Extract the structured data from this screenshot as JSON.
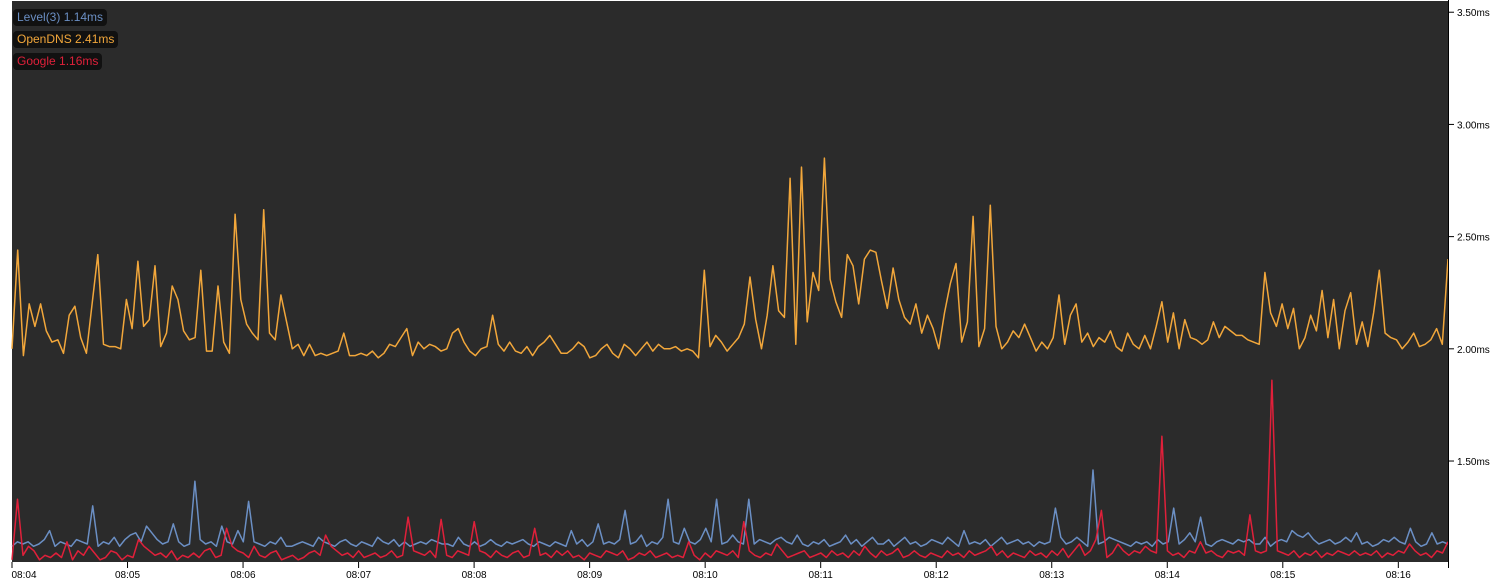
{
  "chart_data": {
    "type": "line",
    "x_ticks": [
      "08:04",
      "08:05",
      "08:06",
      "08:07",
      "08:08",
      "08:09",
      "08:10",
      "08:11",
      "08:12",
      "08:13",
      "08:14",
      "08:15",
      "08:16"
    ],
    "x_range_minutes": [
      0,
      12.43
    ],
    "y_ticks": [
      "1.50ms",
      "2.00ms",
      "2.50ms",
      "3.00ms",
      "3.50ms"
    ],
    "y_tick_values": [
      1.5,
      2.0,
      2.5,
      3.0,
      3.5
    ],
    "ylim": [
      1.05,
      3.55
    ],
    "background": "#2b2b2b",
    "grid": false,
    "legend_position": "top-left",
    "legend": [
      {
        "label": "Level(3) 1.14ms",
        "color": "#6b8fc4"
      },
      {
        "label": "OpenDNS 2.41ms",
        "color": "#f2a73b"
      },
      {
        "label": "Google 1.16ms",
        "color": "#e0203a"
      }
    ],
    "series": [
      {
        "name": "Level(3)",
        "color": "#6b8fc4",
        "values": [
          1.12,
          1.14,
          1.13,
          1.14,
          1.12,
          1.13,
          1.15,
          1.19,
          1.12,
          1.14,
          1.13,
          1.12,
          1.15,
          1.14,
          1.13,
          1.3,
          1.12,
          1.14,
          1.13,
          1.16,
          1.12,
          1.15,
          1.17,
          1.18,
          1.14,
          1.21,
          1.18,
          1.15,
          1.13,
          1.14,
          1.22,
          1.14,
          1.12,
          1.13,
          1.41,
          1.15,
          1.13,
          1.14,
          1.12,
          1.21,
          1.14,
          1.13,
          1.19,
          1.14,
          1.32,
          1.14,
          1.13,
          1.12,
          1.14,
          1.13,
          1.16,
          1.12,
          1.12,
          1.13,
          1.14,
          1.13,
          1.12,
          1.16,
          1.14,
          1.13,
          1.12,
          1.14,
          1.15,
          1.13,
          1.12,
          1.14,
          1.13,
          1.12,
          1.16,
          1.14,
          1.13,
          1.15,
          1.12,
          1.14,
          1.12,
          1.13,
          1.14,
          1.13,
          1.15,
          1.14,
          1.13,
          1.13,
          1.12,
          1.16,
          1.13,
          1.12,
          1.14,
          1.12,
          1.13,
          1.15,
          1.13,
          1.12,
          1.14,
          1.13,
          1.14,
          1.15,
          1.13,
          1.12,
          1.14,
          1.13,
          1.12,
          1.14,
          1.13,
          1.12,
          1.19,
          1.13,
          1.15,
          1.12,
          1.14,
          1.22,
          1.13,
          1.14,
          1.13,
          1.15,
          1.28,
          1.13,
          1.14,
          1.17,
          1.12,
          1.14,
          1.13,
          1.16,
          1.33,
          1.14,
          1.13,
          1.2,
          1.14,
          1.13,
          1.15,
          1.2,
          1.14,
          1.33,
          1.13,
          1.14,
          1.17,
          1.14,
          1.13,
          1.33,
          1.13,
          1.15,
          1.14,
          1.13,
          1.15,
          1.16,
          1.14,
          1.13,
          1.17,
          1.13,
          1.12,
          1.14,
          1.13,
          1.15,
          1.12,
          1.13,
          1.14,
          1.17,
          1.13,
          1.15,
          1.12,
          1.14,
          1.16,
          1.13,
          1.13,
          1.15,
          1.12,
          1.14,
          1.16,
          1.13,
          1.14,
          1.12,
          1.13,
          1.15,
          1.14,
          1.13,
          1.16,
          1.14,
          1.12,
          1.19,
          1.13,
          1.14,
          1.13,
          1.15,
          1.12,
          1.14,
          1.16,
          1.13,
          1.14,
          1.15,
          1.13,
          1.14,
          1.12,
          1.14,
          1.13,
          1.14,
          1.29,
          1.16,
          1.13,
          1.14,
          1.16,
          1.14,
          1.12,
          1.46,
          1.13,
          1.14,
          1.16,
          1.15,
          1.14,
          1.13,
          1.12,
          1.14,
          1.13,
          1.14,
          1.12,
          1.15,
          1.13,
          1.14,
          1.29,
          1.13,
          1.15,
          1.18,
          1.14,
          1.25,
          1.13,
          1.12,
          1.14,
          1.15,
          1.14,
          1.13,
          1.15,
          1.14,
          1.15,
          1.13,
          1.13,
          1.16,
          1.12,
          1.14,
          1.15,
          1.14,
          1.19,
          1.17,
          1.16,
          1.18,
          1.15,
          1.13,
          1.14,
          1.15,
          1.13,
          1.14,
          1.16,
          1.14,
          1.18,
          1.13,
          1.14,
          1.12,
          1.13,
          1.15,
          1.14,
          1.16,
          1.14,
          1.13,
          1.2,
          1.14,
          1.12,
          1.13,
          1.18,
          1.13,
          1.14,
          1.13
        ]
      },
      {
        "name": "OpenDNS",
        "color": "#f2a73b",
        "values": [
          2.0,
          2.44,
          1.97,
          2.2,
          2.1,
          2.2,
          2.08,
          2.03,
          2.04,
          1.98,
          2.15,
          2.19,
          2.05,
          1.98,
          2.2,
          2.42,
          2.02,
          2.01,
          2.01,
          2.0,
          2.22,
          2.09,
          2.39,
          2.1,
          2.13,
          2.37,
          2.01,
          2.07,
          2.28,
          2.22,
          2.08,
          2.04,
          2.05,
          2.35,
          1.99,
          1.99,
          2.28,
          2.03,
          1.98,
          2.6,
          2.22,
          2.11,
          2.07,
          2.04,
          2.62,
          2.07,
          2.04,
          2.24,
          2.12,
          2.0,
          2.02,
          1.97,
          2.02,
          1.97,
          1.98,
          1.97,
          1.98,
          1.99,
          2.07,
          1.97,
          1.97,
          1.98,
          1.97,
          1.99,
          1.96,
          1.98,
          2.02,
          2.01,
          2.05,
          2.09,
          1.97,
          2.03,
          2.0,
          2.02,
          2.01,
          1.99,
          2.0,
          2.07,
          2.09,
          2.03,
          1.99,
          1.97,
          2.0,
          2.01,
          2.15,
          2.02,
          1.99,
          2.03,
          1.99,
          1.98,
          2.01,
          1.97,
          2.01,
          2.03,
          2.06,
          2.02,
          1.98,
          1.98,
          2.0,
          2.03,
          2.01,
          1.96,
          1.97,
          2.0,
          2.02,
          1.98,
          1.96,
          2.02,
          2.0,
          1.97,
          2.0,
          2.03,
          1.99,
          2.02,
          2.0,
          2.0,
          2.01,
          1.99,
          2.0,
          1.99,
          1.96,
          2.35,
          2.01,
          2.06,
          2.03,
          1.99,
          2.02,
          2.05,
          2.11,
          2.32,
          2.13,
          2.0,
          2.15,
          2.37,
          2.17,
          2.14,
          2.76,
          2.02,
          2.81,
          2.12,
          2.34,
          2.26,
          2.85,
          2.31,
          2.21,
          2.14,
          2.42,
          2.37,
          2.2,
          2.4,
          2.44,
          2.43,
          2.3,
          2.18,
          2.36,
          2.22,
          2.14,
          2.11,
          2.2,
          2.07,
          2.15,
          2.09,
          2.0,
          2.16,
          2.29,
          2.38,
          2.03,
          2.12,
          2.59,
          2.01,
          2.09,
          2.64,
          2.1,
          2.0,
          2.03,
          2.08,
          2.05,
          2.11,
          2.05,
          1.99,
          2.03,
          2.0,
          2.05,
          2.24,
          2.02,
          2.15,
          2.2,
          2.03,
          2.07,
          2.01,
          2.05,
          2.03,
          2.08,
          2.01,
          1.99,
          2.07,
          2.02,
          2.0,
          2.06,
          2.0,
          2.1,
          2.21,
          2.03,
          2.16,
          2.0,
          2.13,
          2.05,
          2.04,
          2.02,
          2.04,
          2.12,
          2.05,
          2.1,
          2.08,
          2.06,
          2.06,
          2.04,
          2.03,
          2.02,
          2.34,
          2.16,
          2.1,
          2.2,
          2.09,
          2.18,
          2.0,
          2.05,
          2.15,
          2.08,
          2.26,
          2.05,
          2.22,
          2.0,
          2.17,
          2.25,
          2.02,
          2.12,
          2.01,
          2.16,
          2.35,
          2.07,
          2.05,
          2.04,
          2.0,
          2.03,
          2.07,
          2.01,
          2.02,
          2.04,
          2.09,
          2.02,
          2.4
        ]
      },
      {
        "name": "Google",
        "color": "#e0203a",
        "values": [
          1.06,
          1.33,
          1.08,
          1.12,
          1.1,
          1.06,
          1.08,
          1.07,
          1.09,
          1.07,
          1.14,
          1.06,
          1.1,
          1.08,
          1.12,
          1.09,
          1.06,
          1.07,
          1.1,
          1.09,
          1.06,
          1.08,
          1.07,
          1.15,
          1.12,
          1.1,
          1.08,
          1.09,
          1.07,
          1.1,
          1.06,
          1.08,
          1.07,
          1.09,
          1.07,
          1.1,
          1.11,
          1.07,
          1.08,
          1.2,
          1.12,
          1.1,
          1.09,
          1.07,
          1.12,
          1.08,
          1.07,
          1.09,
          1.1,
          1.06,
          1.07,
          1.08,
          1.06,
          1.07,
          1.09,
          1.1,
          1.08,
          1.17,
          1.12,
          1.1,
          1.08,
          1.09,
          1.07,
          1.1,
          1.07,
          1.08,
          1.09,
          1.07,
          1.08,
          1.1,
          1.07,
          1.08,
          1.25,
          1.1,
          1.09,
          1.08,
          1.1,
          1.07,
          1.24,
          1.08,
          1.07,
          1.1,
          1.09,
          1.08,
          1.23,
          1.1,
          1.09,
          1.07,
          1.1,
          1.08,
          1.07,
          1.09,
          1.1,
          1.07,
          1.08,
          1.2,
          1.08,
          1.09,
          1.07,
          1.1,
          1.08,
          1.1,
          1.07,
          1.08,
          1.06,
          1.09,
          1.08,
          1.07,
          1.1,
          1.09,
          1.08,
          1.1,
          1.06,
          1.07,
          1.09,
          1.08,
          1.1,
          1.07,
          1.08,
          1.09,
          1.07,
          1.08,
          1.07,
          1.14,
          1.08,
          1.06,
          1.09,
          1.07,
          1.1,
          1.09,
          1.08,
          1.1,
          1.07,
          1.23,
          1.1,
          1.08,
          1.07,
          1.09,
          1.08,
          1.13,
          1.1,
          1.07,
          1.08,
          1.09,
          1.1,
          1.07,
          1.08,
          1.09,
          1.07,
          1.1,
          1.08,
          1.09,
          1.07,
          1.1,
          1.08,
          1.12,
          1.09,
          1.07,
          1.1,
          1.08,
          1.09,
          1.11,
          1.07,
          1.08,
          1.1,
          1.08,
          1.07,
          1.09,
          1.08,
          1.07,
          1.1,
          1.08,
          1.09,
          1.07,
          1.1,
          1.08,
          1.09,
          1.1,
          1.12,
          1.08,
          1.1,
          1.07,
          1.09,
          1.08,
          1.07,
          1.1,
          1.08,
          1.09,
          1.07,
          1.1,
          1.08,
          1.11,
          1.07,
          1.1,
          1.13,
          1.08,
          1.1,
          1.15,
          1.28,
          1.07,
          1.09,
          1.13,
          1.1,
          1.08,
          1.1,
          1.09,
          1.12,
          1.1,
          1.09,
          1.61,
          1.1,
          1.08,
          1.09,
          1.07,
          1.1,
          1.09,
          1.14,
          1.09,
          1.1,
          1.08,
          1.07,
          1.1,
          1.09,
          1.1,
          1.08,
          1.26,
          1.1,
          1.09,
          1.1,
          1.86,
          1.1,
          1.09,
          1.08,
          1.1,
          1.07,
          1.09,
          1.08,
          1.1,
          1.07,
          1.09,
          1.08,
          1.1,
          1.09,
          1.08,
          1.1,
          1.08,
          1.09,
          1.08,
          1.1,
          1.07,
          1.09,
          1.08,
          1.1,
          1.09,
          1.13,
          1.1,
          1.08,
          1.09,
          1.07,
          1.1,
          1.09,
          1.14
        ]
      }
    ]
  }
}
